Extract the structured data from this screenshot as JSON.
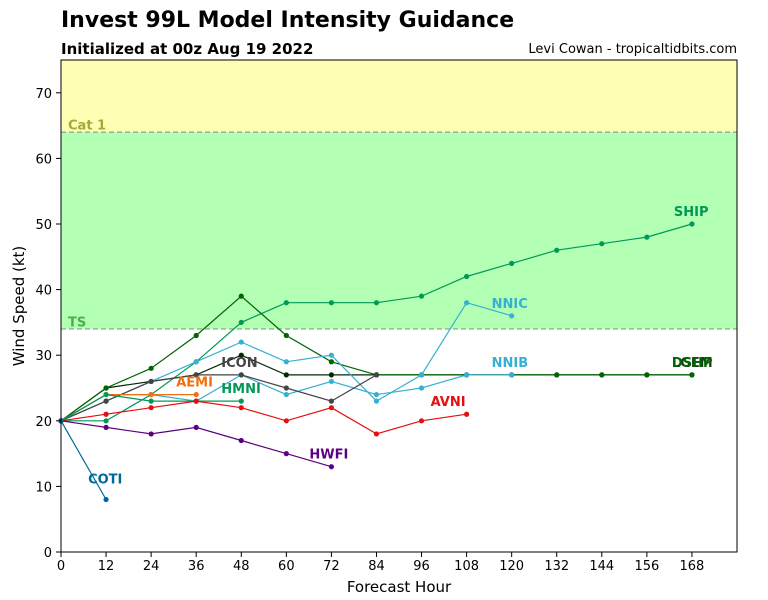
{
  "header": {
    "title": "Invest 99L Model Intensity Guidance",
    "subtitle": "Initialized at 00z Aug 19 2022",
    "credit": "Levi Cowan - tropicaltidbits.com"
  },
  "chart_data": {
    "type": "line",
    "xlabel": "Forecast Hour",
    "ylabel": "Wind Speed (kt)",
    "xlim": [
      0,
      180
    ],
    "ylim": [
      0,
      75
    ],
    "xticks": [
      0,
      12,
      24,
      36,
      48,
      60,
      72,
      84,
      96,
      108,
      120,
      132,
      144,
      156,
      168
    ],
    "yticks": [
      0,
      10,
      20,
      30,
      40,
      50,
      60,
      70
    ],
    "grid": false,
    "zones": [
      {
        "label": "TS",
        "from": 34,
        "to": 64,
        "color": "#b3ffb3",
        "label_color": "#4cae4c",
        "label_y": 35
      },
      {
        "label": "Cat 1",
        "from": 64,
        "to": 75,
        "color": "#ffffb3",
        "label_color": "#a8a83a",
        "label_y": 65
      }
    ],
    "series": [
      {
        "name": "SHIP",
        "color": "#009957",
        "label_color": "#009957",
        "x": [
          0,
          12,
          24,
          36,
          48,
          60,
          72,
          84,
          96,
          108,
          120,
          132,
          144,
          156,
          168
        ],
        "y": [
          20,
          20,
          24,
          29,
          35,
          38,
          38,
          38,
          39,
          42,
          44,
          46,
          47,
          48,
          50
        ]
      },
      {
        "name": "LGEM",
        "color": "#002a00",
        "label_color": "#1a3d1a",
        "x": [
          0,
          12,
          24,
          36,
          48,
          60,
          72,
          84,
          96,
          108,
          120,
          132,
          144,
          156,
          168
        ],
        "y": [
          20,
          25,
          26,
          27,
          30,
          27,
          27,
          27,
          27,
          27,
          27,
          27,
          27,
          27,
          27
        ]
      },
      {
        "name": "DSHP",
        "color": "#006400",
        "label_color": "#006400",
        "x": [
          0,
          12,
          24,
          36,
          48,
          60,
          72,
          84,
          96,
          108,
          120,
          132,
          144,
          156,
          168
        ],
        "y": [
          20,
          25,
          28,
          33,
          39,
          33,
          29,
          27,
          27,
          27,
          27,
          27,
          27,
          27,
          27
        ]
      },
      {
        "name": "NNIC",
        "color": "#36b0d2",
        "label_color": "#36b0d2",
        "x": [
          0,
          12,
          24,
          36,
          48,
          60,
          72,
          84,
          96,
          108,
          120
        ],
        "y": [
          20,
          23,
          26,
          29,
          32,
          29,
          30,
          23,
          27,
          38,
          36
        ]
      },
      {
        "name": "NNIB",
        "color": "#36b0d2",
        "label_color": "#36b0d2",
        "x": [
          0,
          12,
          24,
          36,
          48,
          60,
          72,
          84,
          96,
          108,
          120
        ],
        "y": [
          20,
          24,
          24,
          23,
          27,
          24,
          26,
          24,
          25,
          27,
          27
        ]
      },
      {
        "name": "ICON",
        "color": "#444444",
        "label_color": "#444444",
        "x": [
          0,
          12,
          24,
          36,
          48,
          60,
          72,
          84
        ],
        "y": [
          20,
          23,
          26,
          27,
          27,
          25,
          23,
          27
        ]
      },
      {
        "name": "AEMI",
        "color": "#f07010",
        "label_color": "#f07010",
        "x": [
          0,
          12,
          24,
          36
        ],
        "y": [
          20,
          24,
          24,
          24
        ]
      },
      {
        "name": "HMNI",
        "color": "#009957",
        "label_color": "#009957",
        "x": [
          0,
          12,
          24,
          36,
          48
        ],
        "y": [
          20,
          24,
          23,
          23,
          23
        ]
      },
      {
        "name": "AVNI",
        "color": "#e40f0f",
        "label_color": "#e40f0f",
        "x": [
          0,
          12,
          24,
          36,
          48,
          60,
          72,
          84,
          96,
          108
        ],
        "y": [
          20,
          21,
          22,
          23,
          22,
          20,
          22,
          18,
          20,
          21
        ]
      },
      {
        "name": "HWFI",
        "color": "#5c0080",
        "label_color": "#5c0080",
        "x": [
          0,
          12,
          24,
          36,
          48,
          60,
          72
        ],
        "y": [
          20,
          19,
          18,
          19,
          17,
          15,
          13
        ]
      },
      {
        "name": "COTI",
        "color": "#00689c",
        "label_color": "#00689c",
        "x": [
          0,
          12
        ],
        "y": [
          20,
          8
        ]
      }
    ]
  }
}
